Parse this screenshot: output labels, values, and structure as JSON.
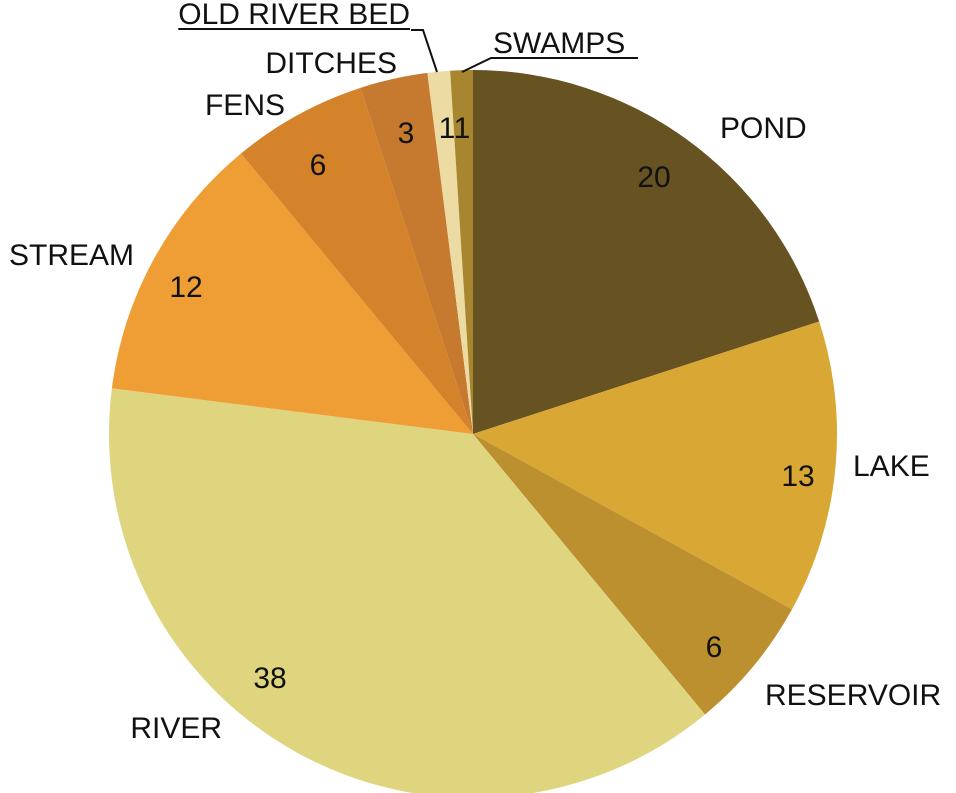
{
  "chart_data": {
    "type": "pie",
    "title": "",
    "start": "12 o'clock",
    "direction": "clockwise",
    "legend": "none",
    "slices": [
      {
        "label": "POND",
        "value": 20,
        "value_label": "20",
        "color": "#675222"
      },
      {
        "label": "LAKE",
        "value": 13,
        "value_label": "13",
        "color": "#d8a734"
      },
      {
        "label": "RESERVOIR",
        "value": 6,
        "value_label": "6",
        "color": "#bc8f2f"
      },
      {
        "label": "RIVER",
        "value": 38,
        "value_label": "38",
        "color": "#dfd57f"
      },
      {
        "label": "STREAM",
        "value": 12,
        "value_label": "12",
        "color": "#ee9e35"
      },
      {
        "label": "FENS",
        "value": 6,
        "value_label": "6",
        "color": "#d4832b"
      },
      {
        "label": "DITCHES",
        "value": 3,
        "value_label": "3",
        "color": "#c57a30"
      },
      {
        "label": "OLD RIVER BED",
        "value": 1,
        "value_label": "1",
        "color": "#ecdba3"
      },
      {
        "label": "SWAMPS",
        "value": 1,
        "value_label": "1",
        "color": "#a8862f"
      }
    ]
  }
}
